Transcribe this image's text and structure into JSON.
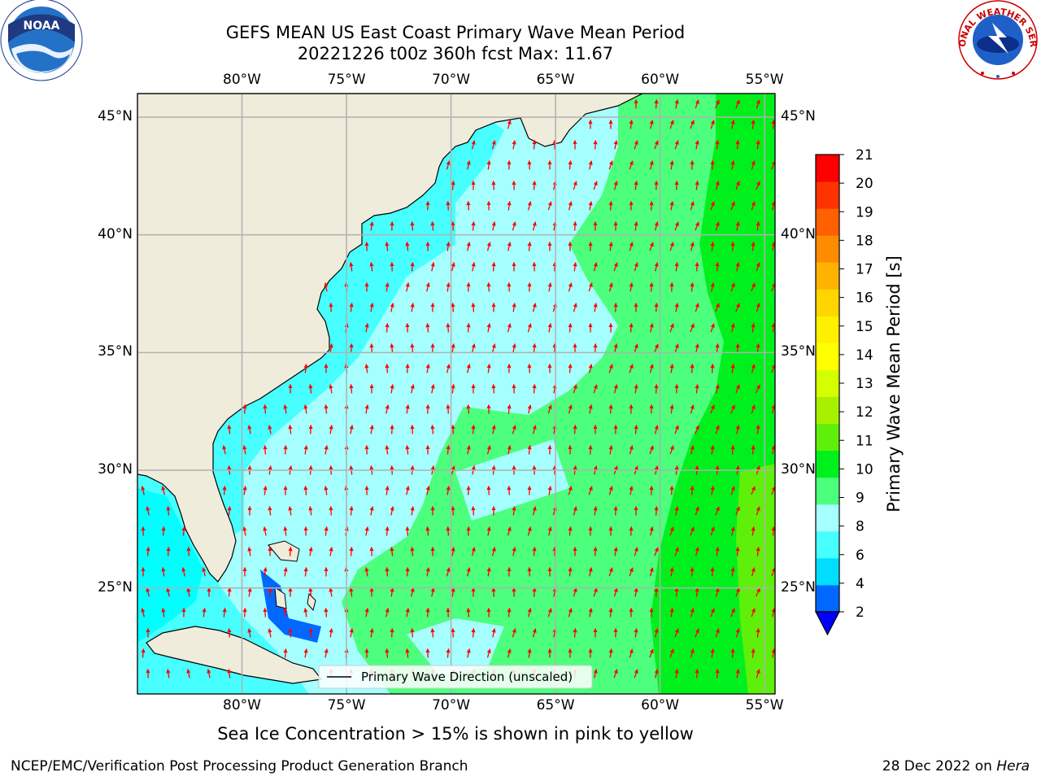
{
  "title": {
    "line1": "GEFS MEAN US East Coast Primary Wave Mean Period",
    "line2": "20221226 t00z 360h fcst   Max: 11.67"
  },
  "map": {
    "lon_labels": [
      "80°W",
      "75°W",
      "70°W",
      "65°W",
      "60°W",
      "55°W"
    ],
    "lat_labels": [
      "45°N",
      "40°N",
      "35°N",
      "30°N",
      "25°N"
    ],
    "lon_values": [
      -80,
      -75,
      -70,
      -65,
      -60,
      -55
    ],
    "lat_values": [
      45,
      40,
      35,
      30,
      25
    ],
    "lon_range": [
      -85,
      -54.5
    ],
    "lat_range": [
      20.5,
      46
    ],
    "colors": {
      "land": "#efecdb",
      "grid": "#b0b0b0",
      "arrow": "#ff0000",
      "coast": "#000000"
    }
  },
  "legend": {
    "label": "Primary Wave Direction (unscaled)"
  },
  "colorbar": {
    "label": "Primary Wave Mean Period [s]",
    "tick_labels": [
      "21",
      "20",
      "19",
      "18",
      "17",
      "16",
      "15",
      "14",
      "13",
      "12",
      "11",
      "10",
      "9",
      "8",
      "6",
      "4",
      "2"
    ],
    "colors_bottom_to_top": [
      "#0068ff",
      "#00ddff",
      "#47ffff",
      "#a5ffff",
      "#4cff7c",
      "#00f01d",
      "#5ef00b",
      "#a7f000",
      "#d4ff00",
      "#ffff00",
      "#fff000",
      "#ffd500",
      "#ffb300",
      "#ff8c00",
      "#ff6000",
      "#ff3300",
      "#ff0000"
    ],
    "extend_color": "#0000ff"
  },
  "notes": {
    "sea_ice": "Sea Ice Concentration > 15% is shown in pink to yellow",
    "footer_left": "NCEP/EMC/Verification Post Processing Product Generation Branch",
    "footer_date": "28 Dec 2022 on ",
    "footer_machine": "Hera"
  },
  "logos": {
    "noaa_text": "NOAA",
    "nws_text": "NATIONAL WEATHER SERVICE"
  }
}
